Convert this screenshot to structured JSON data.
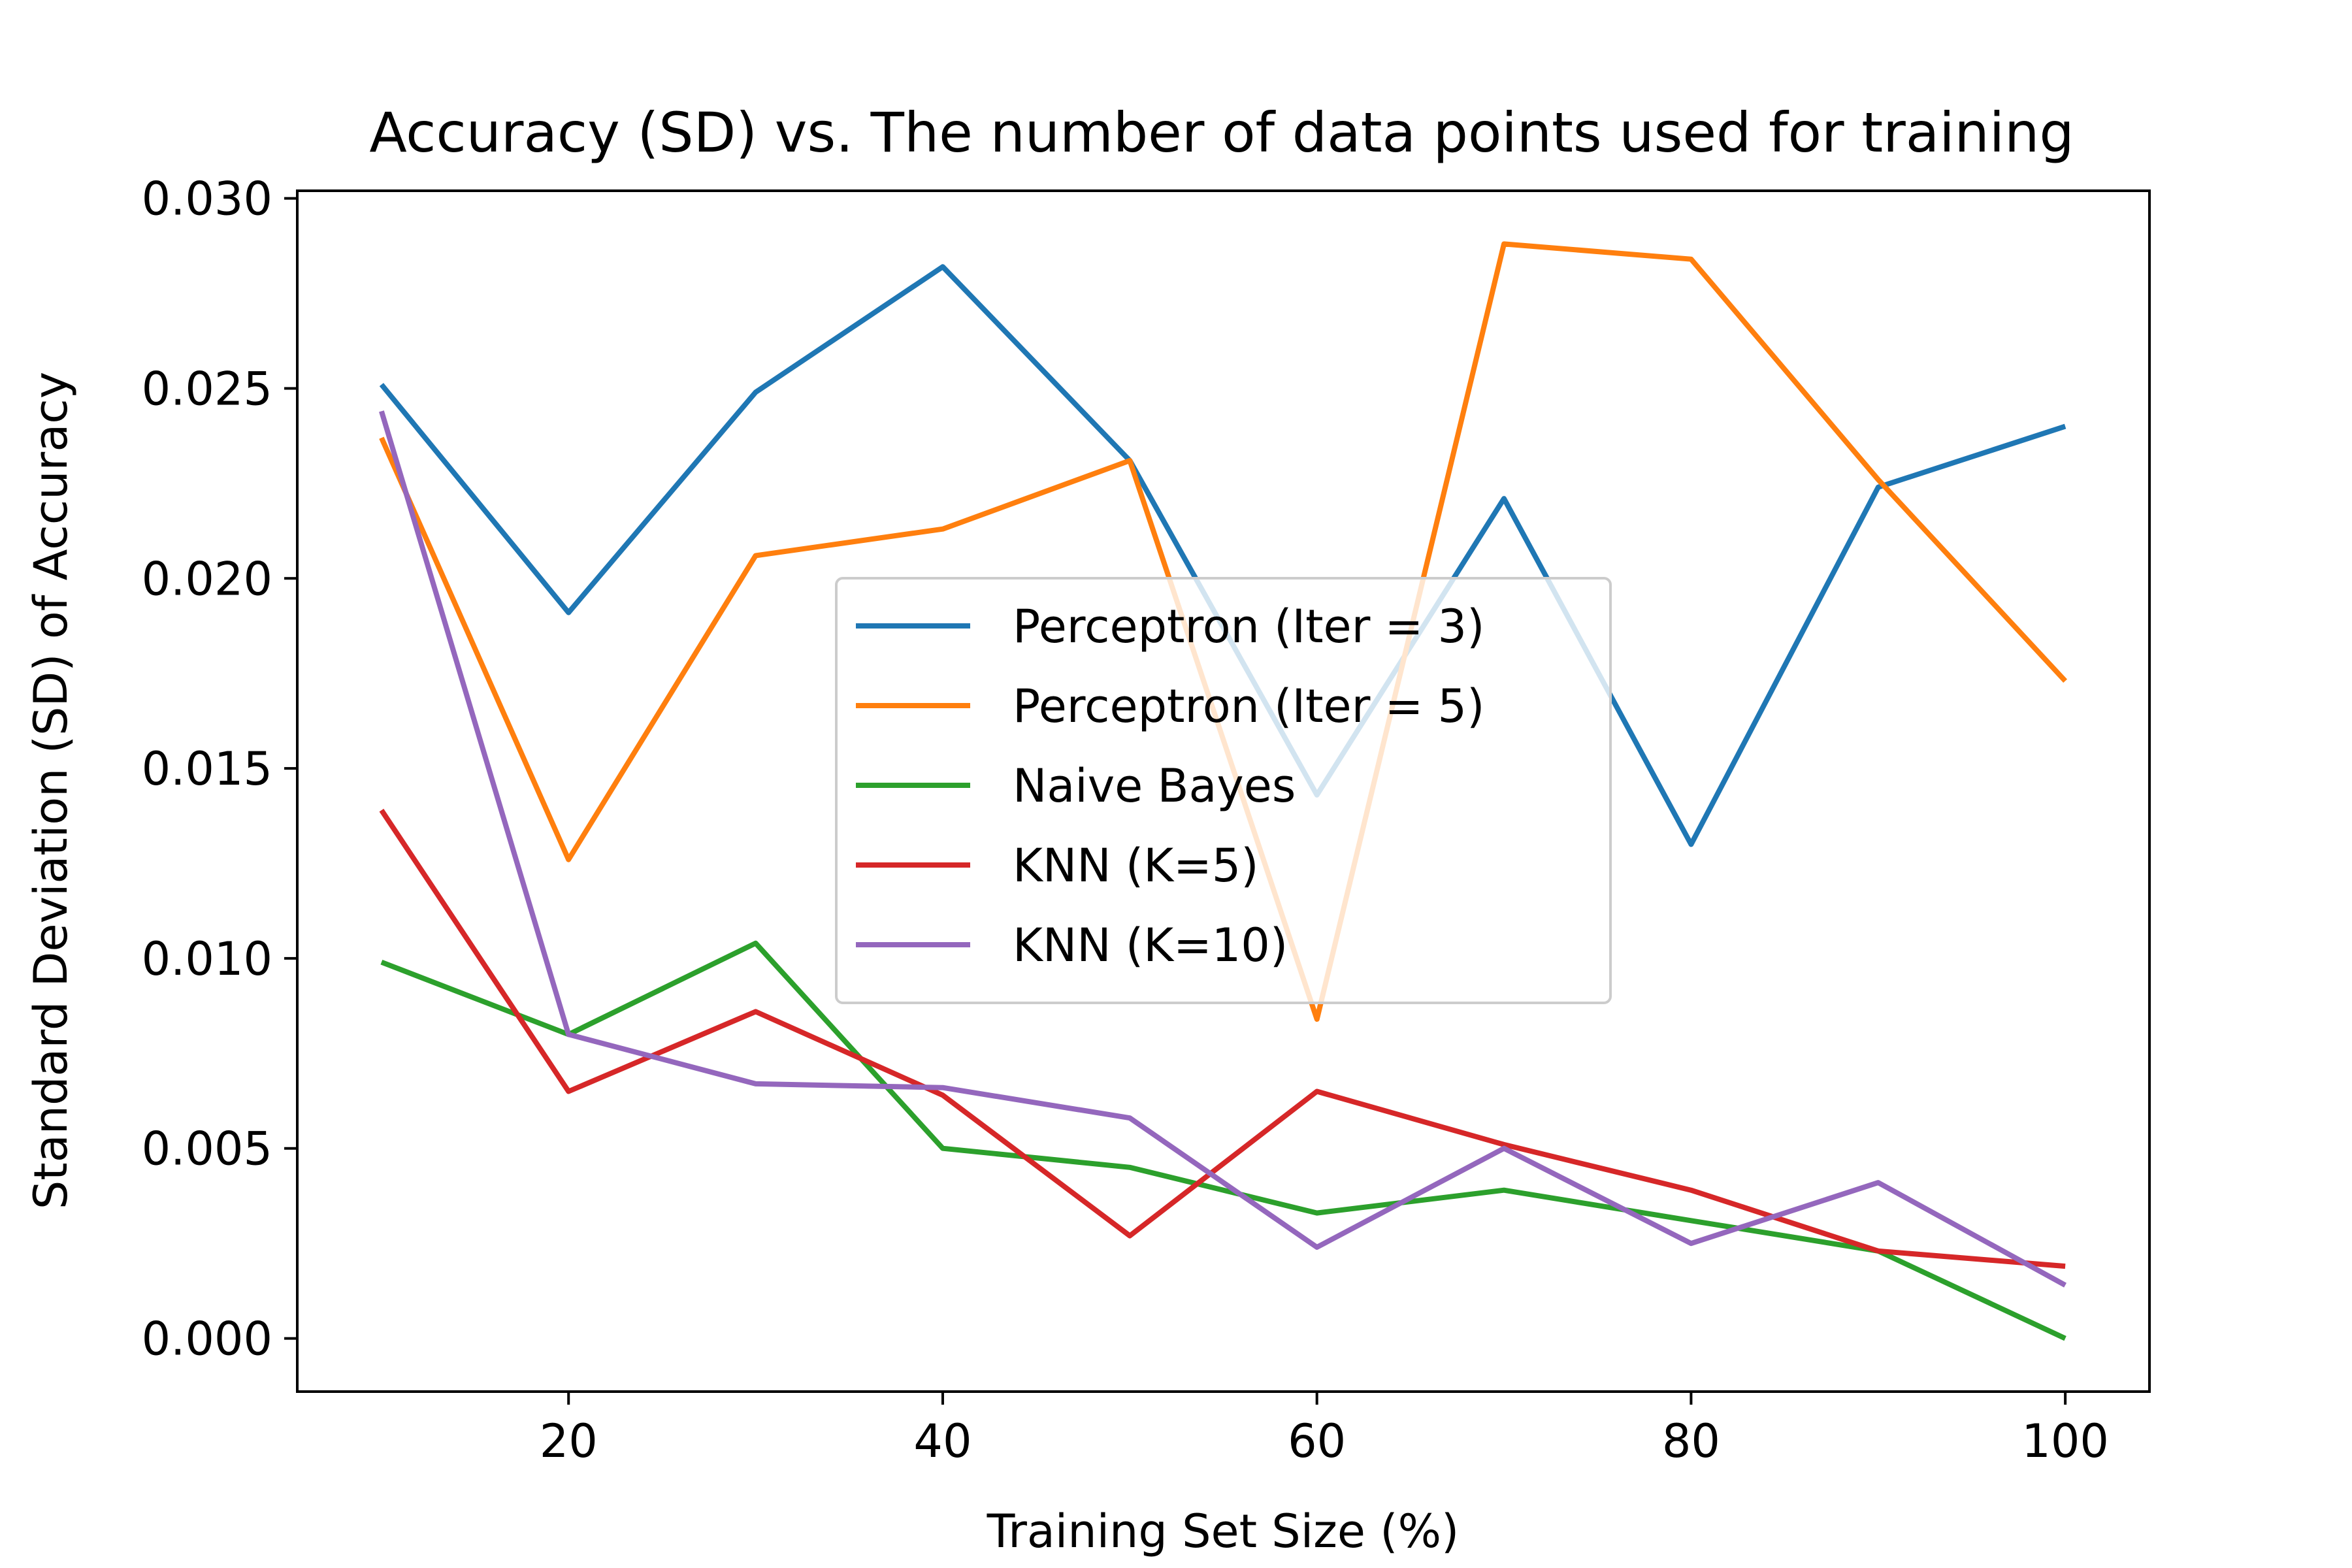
{
  "chart_data": {
    "type": "line",
    "title": "Accuracy (SD) vs. The number of data points used for training",
    "xlabel": "Training Set Size (%)",
    "ylabel": "Standard Deviation (SD) of Accuracy",
    "x": [
      10,
      20,
      30,
      40,
      50,
      60,
      70,
      80,
      90,
      100
    ],
    "xlim": [
      5.5,
      104.5
    ],
    "ylim": [
      -0.0014,
      0.0302
    ],
    "xticks": [
      20,
      40,
      60,
      80,
      100
    ],
    "xtick_labels": [
      "20",
      "40",
      "60",
      "80",
      "100"
    ],
    "yticks": [
      0.0,
      0.005,
      0.01,
      0.015,
      0.02,
      0.025,
      0.03
    ],
    "ytick_labels": [
      "0.000",
      "0.005",
      "0.010",
      "0.015",
      "0.020",
      "0.025",
      "0.030"
    ],
    "grid": false,
    "legend_placement": "center",
    "series": [
      {
        "name": "Perceptron (Iter = 3)",
        "color": "#1f77b4",
        "values": [
          0.0251,
          0.0191,
          0.0249,
          0.0282,
          0.0231,
          0.0143,
          0.0221,
          0.013,
          0.0224,
          0.024
        ]
      },
      {
        "name": "Perceptron (Iter = 5)",
        "color": "#ff7f0e",
        "values": [
          0.0237,
          0.0126,
          0.0206,
          0.0213,
          0.0231,
          0.0084,
          0.0288,
          0.0284,
          0.0226,
          0.0173
        ]
      },
      {
        "name": "Naive Bayes",
        "color": "#2ca02c",
        "values": [
          0.0099,
          0.008,
          0.0104,
          0.005,
          0.0045,
          0.0033,
          0.0039,
          0.0031,
          0.0023,
          0.0
        ]
      },
      {
        "name": "KNN (K=5)",
        "color": "#d62728",
        "values": [
          0.0139,
          0.0065,
          0.0086,
          0.0064,
          0.0027,
          0.0065,
          0.0051,
          0.0039,
          0.0023,
          0.0019
        ]
      },
      {
        "name": "KNN (K=10)",
        "color": "#9467bd",
        "values": [
          0.0244,
          0.008,
          0.0067,
          0.0066,
          0.0058,
          0.0024,
          0.005,
          0.0025,
          0.0041,
          0.0014
        ]
      }
    ]
  }
}
